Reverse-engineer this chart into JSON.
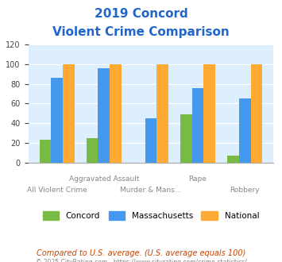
{
  "title_line1": "2019 Concord",
  "title_line2": "Violent Crime Comparison",
  "categories": [
    "All Violent Crime",
    "Aggravated Assault",
    "Murder & Mans...",
    "Rape",
    "Robbery"
  ],
  "concord": [
    23,
    25,
    0,
    49,
    7
  ],
  "massachusetts": [
    86,
    96,
    45,
    76,
    65
  ],
  "national": [
    100,
    100,
    100,
    100,
    100
  ],
  "bar_colors": {
    "concord": "#77bb44",
    "massachusetts": "#4499ee",
    "national": "#ffaa33"
  },
  "ylim": [
    0,
    120
  ],
  "yticks": [
    0,
    20,
    40,
    60,
    80,
    100,
    120
  ],
  "xlabel_top": [
    "",
    "Aggravated Assault",
    "",
    "Rape",
    ""
  ],
  "xlabel_bottom": [
    "All Violent Crime",
    "",
    "Murder & Mans...",
    "",
    "Robbery"
  ],
  "footnote1": "Compared to U.S. average. (U.S. average equals 100)",
  "footnote2": "© 2025 CityRating.com - https://www.cityrating.com/crime-statistics/",
  "title_color": "#2266cc",
  "footnote1_color": "#cc4400",
  "footnote2_color": "#888888",
  "xlabel_color": "#888888",
  "bg_color": "#ddeeff",
  "fig_bg": "#ffffff"
}
